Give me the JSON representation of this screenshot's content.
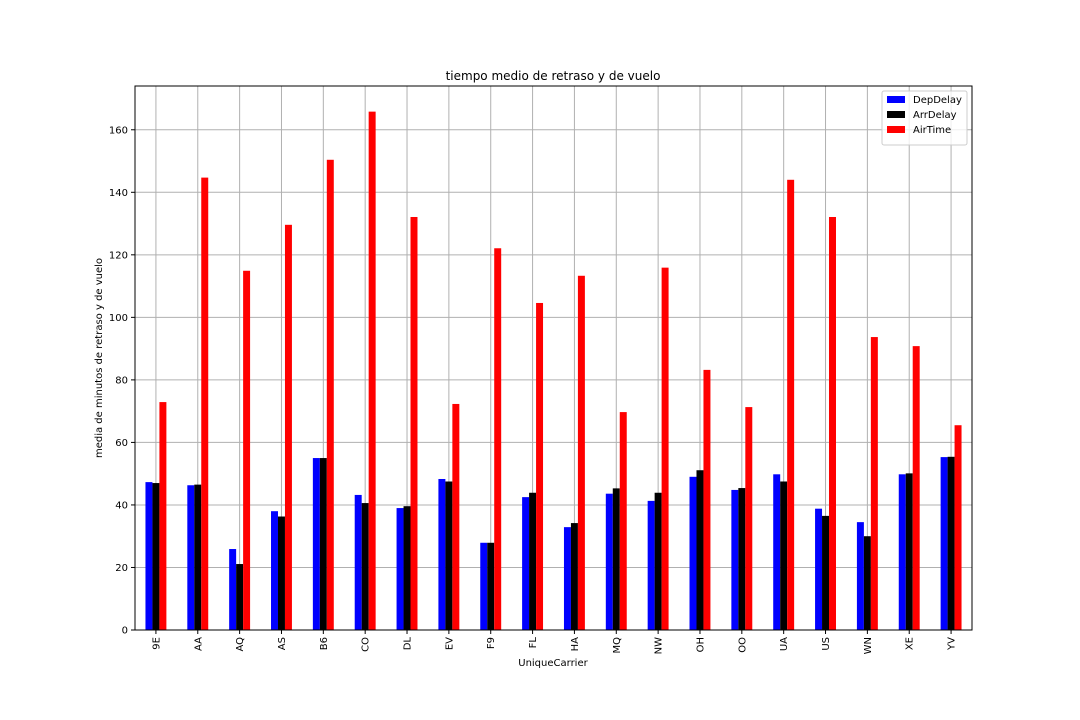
{
  "chart_data": {
    "type": "bar",
    "title": "tiempo medio de retraso y de vuelo",
    "xlabel": "UniqueCarrier",
    "ylabel": "media de minutos de retraso y de vuelo",
    "categories": [
      "9E",
      "AA",
      "AQ",
      "AS",
      "B6",
      "CO",
      "DL",
      "EV",
      "F9",
      "FL",
      "HA",
      "MQ",
      "NW",
      "OH",
      "OO",
      "UA",
      "US",
      "WN",
      "XE",
      "YV"
    ],
    "ylim": [
      0,
      174
    ],
    "yticks": [
      0,
      20,
      40,
      60,
      80,
      100,
      120,
      140,
      160
    ],
    "grid": true,
    "legend_position": "top-right",
    "series": [
      {
        "name": "DepDelay",
        "color": "#0000ff",
        "values": [
          47.3,
          46.3,
          25.9,
          38.0,
          55.0,
          43.2,
          39.0,
          48.3,
          27.9,
          42.5,
          32.9,
          43.6,
          41.3,
          49.0,
          44.8,
          49.8,
          38.8,
          34.5,
          49.8,
          55.3
        ]
      },
      {
        "name": "ArrDelay",
        "color": "#000000",
        "values": [
          47.0,
          46.5,
          21.1,
          36.3,
          55.0,
          40.6,
          39.6,
          47.5,
          27.9,
          43.9,
          34.2,
          45.3,
          43.9,
          51.1,
          45.4,
          47.5,
          36.5,
          30.0,
          50.1,
          55.4
        ]
      },
      {
        "name": "AirTime",
        "color": "#ff0000",
        "values": [
          72.9,
          144.7,
          114.9,
          129.6,
          150.4,
          165.8,
          132.1,
          72.3,
          122.1,
          104.6,
          113.3,
          69.7,
          115.9,
          83.2,
          71.3,
          144.0,
          132.1,
          93.7,
          90.8,
          65.5
        ]
      }
    ]
  }
}
